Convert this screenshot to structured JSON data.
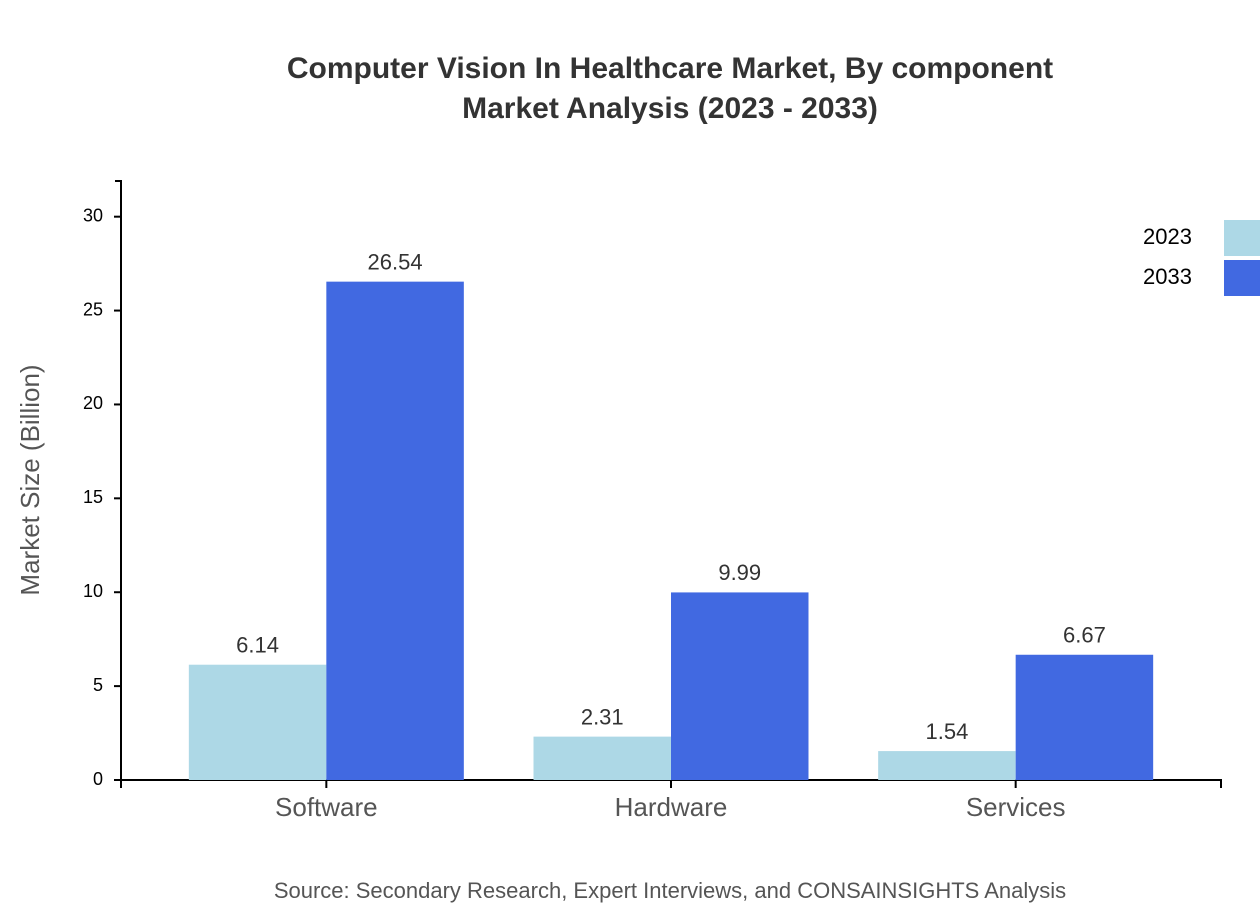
{
  "chart_data": {
    "type": "bar",
    "title": "Computer Vision In Healthcare Market, By component",
    "subtitle": "Market Analysis (2023 - 2033)",
    "y_label": "Market Size (Billion)",
    "source": "Source: Secondary Research, Expert Interviews, and CONSAINSIGHTS Analysis",
    "categories": [
      "Software",
      "Hardware",
      "Services"
    ],
    "series": [
      {
        "name": "2023",
        "color": "#add8e6",
        "values": [
          6.14,
          2.31,
          1.54
        ]
      },
      {
        "name": "2033",
        "color": "#4169e1",
        "values": [
          26.54,
          9.99,
          6.67
        ]
      }
    ],
    "ylim": [
      0,
      31.9
    ],
    "yticks": [
      0,
      5,
      10,
      15,
      20,
      25,
      30
    ],
    "legend": "top-right"
  }
}
